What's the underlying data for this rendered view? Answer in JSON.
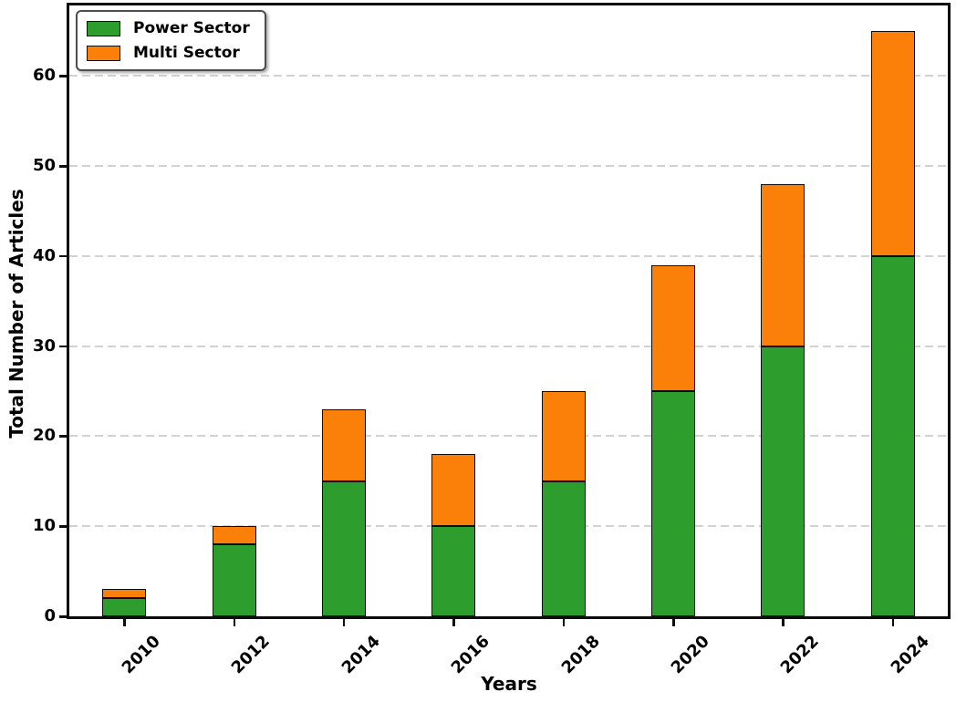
{
  "chart_data": {
    "type": "bar",
    "stacked": true,
    "title": "",
    "xlabel": "Years",
    "ylabel": "Total Number of Articles",
    "categories": [
      "2010",
      "2012",
      "2014",
      "2016",
      "2018",
      "2020",
      "2022",
      "2024"
    ],
    "series": [
      {
        "name": "Power Sector",
        "color": "#2d9e2d",
        "values": [
          2,
          8,
          15,
          10,
          15,
          25,
          30,
          40
        ]
      },
      {
        "name": "Multi Sector",
        "color": "#fb800a",
        "values": [
          1,
          2,
          8,
          8,
          10,
          14,
          18,
          25
        ]
      }
    ],
    "totals": [
      3,
      10,
      23,
      18,
      25,
      39,
      48,
      65
    ],
    "yticks": [
      0,
      10,
      20,
      30,
      40,
      50,
      60
    ],
    "ylim": [
      0,
      67.8
    ],
    "grid": "dashed horizontal lightgray",
    "bar_edge_color": "#0d0d0d",
    "legend_position": "upper left"
  }
}
